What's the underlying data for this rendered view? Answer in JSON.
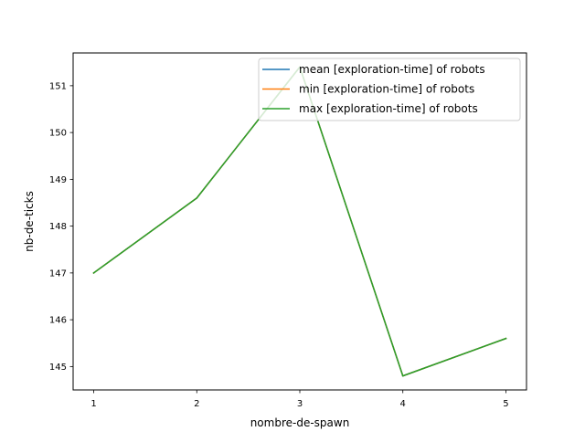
{
  "chart_data": {
    "type": "line",
    "title": "",
    "xlabel": "nombre-de-spawn",
    "ylabel": "nb-de-ticks",
    "x": [
      1,
      2,
      3,
      4,
      5
    ],
    "xticks": [
      "1",
      "2",
      "3",
      "4",
      "5"
    ],
    "yticks": [
      "145",
      "146",
      "147",
      "148",
      "149",
      "150",
      "151"
    ],
    "xlim": [
      0.8,
      5.2
    ],
    "ylim": [
      144.5,
      151.7
    ],
    "grid": false,
    "legend_position": "top-right",
    "series": [
      {
        "name": "mean [exploration-time] of robots",
        "color": "#1f77b4",
        "values": [
          147.0,
          148.6,
          151.4,
          144.8,
          145.6
        ]
      },
      {
        "name": "min [exploration-time] of robots",
        "color": "#ff7f0e",
        "values": [
          147.0,
          148.6,
          151.4,
          144.8,
          145.6
        ]
      },
      {
        "name": "max [exploration-time] of robots",
        "color": "#2ca02c",
        "values": [
          147.0,
          148.6,
          151.4,
          144.8,
          145.6
        ]
      }
    ]
  }
}
